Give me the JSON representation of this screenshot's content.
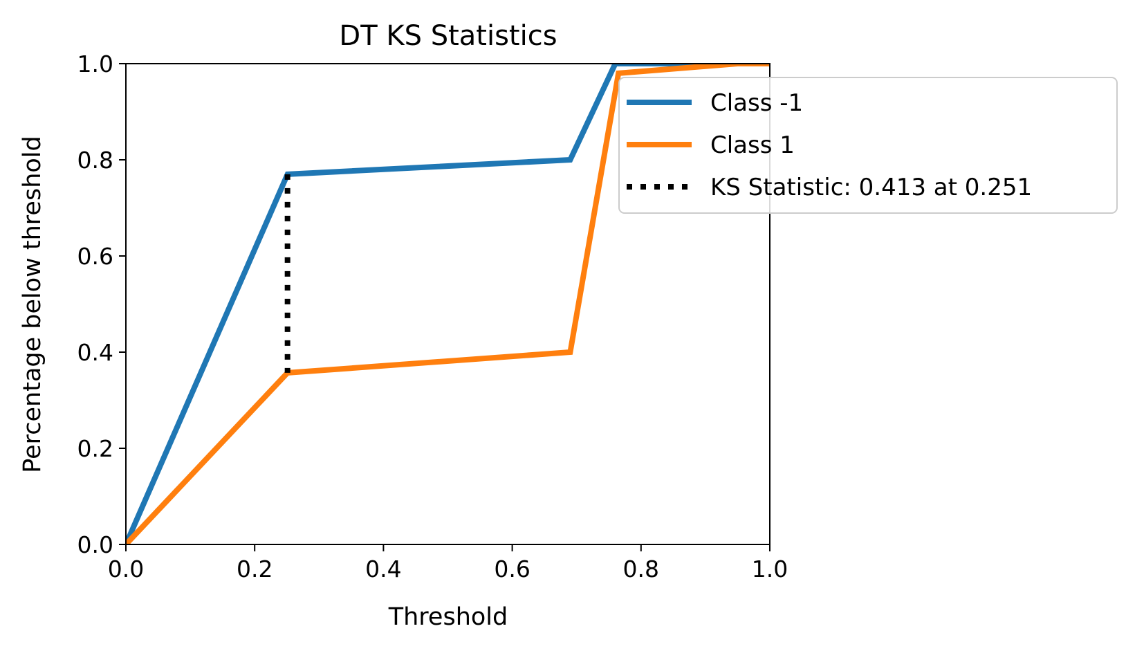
{
  "chart_data": {
    "type": "line",
    "title": "DT KS Statistics",
    "xlabel": "Threshold",
    "ylabel": "Percentage below threshold",
    "xlim": [
      0.0,
      1.0
    ],
    "ylim": [
      0.0,
      1.0
    ],
    "x_ticks": [
      "0.0",
      "0.2",
      "0.4",
      "0.6",
      "0.8",
      "1.0"
    ],
    "y_ticks": [
      "0.0",
      "0.2",
      "0.4",
      "0.6",
      "0.8",
      "1.0"
    ],
    "grid": false,
    "legend_position": "upper-right",
    "series": [
      {
        "name": "Class -1",
        "color": "#1f77b4",
        "x": [
          0.0,
          0.251,
          0.69,
          0.76,
          1.0
        ],
        "y": [
          0.0,
          0.77,
          0.8,
          1.0,
          1.0
        ]
      },
      {
        "name": "Class 1",
        "color": "#ff7f0e",
        "x": [
          0.0,
          0.251,
          0.69,
          0.765,
          0.95,
          1.0
        ],
        "y": [
          0.0,
          0.357,
          0.4,
          0.98,
          1.0,
          1.0
        ]
      }
    ],
    "ks_line": {
      "name": "KS Statistic: 0.413 at 0.251",
      "color": "#000000",
      "x": 0.251,
      "y_from": 0.357,
      "y_to": 0.77
    }
  }
}
